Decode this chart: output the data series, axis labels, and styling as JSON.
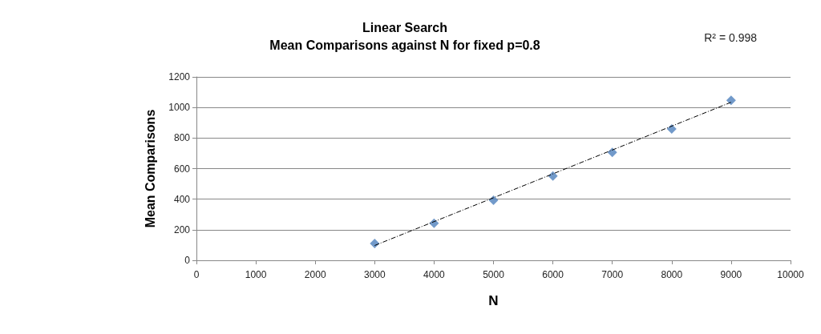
{
  "chart_data": {
    "type": "scatter",
    "title": "Linear Search\nMean Comparisons against N for fixed p=0.8",
    "xlabel": "N",
    "ylabel": "Mean Comparisons",
    "annotations": [
      "R² = 0.998"
    ],
    "series": [
      {
        "type": "scatter",
        "color": "#4f81bd",
        "marker": "diamond",
        "x": [
          3000,
          4000,
          5000,
          6000,
          7000,
          8000,
          9000
        ],
        "values": [
          110,
          243,
          393,
          552,
          706,
          860,
          1047
        ]
      },
      {
        "type": "line",
        "color": "#000000",
        "line_style": "dashed",
        "marker": "none",
        "x": [
          3000,
          9000
        ],
        "values": [
          97,
          1034
        ]
      }
    ],
    "xlim": [
      0,
      10000
    ],
    "xticks": [
      0,
      1000,
      2000,
      3000,
      4000,
      5000,
      6000,
      7000,
      8000,
      9000,
      10000
    ],
    "ylim": [
      0,
      1200
    ],
    "yticks": [
      0,
      200,
      400,
      600,
      800,
      1000,
      1200
    ],
    "grid": "y"
  }
}
